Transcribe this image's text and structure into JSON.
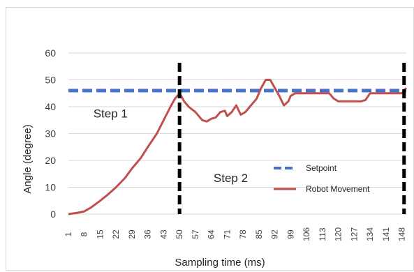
{
  "chart_data": {
    "type": "line",
    "title": "",
    "xlabel": "Sampling time (ms)",
    "ylabel": "Angle (degree)",
    "ylim": [
      0,
      60
    ],
    "yticks": [
      0,
      10,
      20,
      30,
      40,
      50,
      60
    ],
    "xlim": [
      1,
      150
    ],
    "xticks": [
      1,
      8,
      15,
      22,
      29,
      36,
      43,
      50,
      57,
      64,
      71,
      78,
      85,
      92,
      99,
      106,
      113,
      120,
      127,
      134,
      141,
      148
    ],
    "grid": "horizontal",
    "legend_position": "right-center",
    "series": [
      {
        "name": "Setpoint",
        "style": "dashed",
        "color": "#4472c4",
        "x": [
          1,
          150
        ],
        "y": [
          46,
          46
        ]
      },
      {
        "name": "Robot Movement",
        "style": "solid",
        "color": "#c0504d",
        "x": [
          1,
          5,
          8,
          11,
          15,
          18,
          22,
          26,
          29,
          33,
          36,
          40,
          43,
          46,
          48,
          50,
          52,
          54,
          57,
          60,
          62,
          64,
          66,
          68,
          70,
          71,
          73,
          75,
          77,
          79,
          81,
          84,
          86,
          88,
          90,
          92,
          94,
          96,
          98,
          99,
          101,
          104,
          106,
          110,
          113,
          116,
          118,
          120,
          124,
          127,
          130,
          132,
          134,
          137,
          141,
          145,
          148,
          150
        ],
        "y": [
          0,
          0.5,
          1,
          2.5,
          5,
          7,
          10,
          13.5,
          17,
          21,
          25,
          30,
          35,
          40,
          43,
          45,
          42,
          40,
          38,
          35,
          34.5,
          35.5,
          36,
          38,
          38.5,
          36.5,
          38,
          40.5,
          37,
          38,
          40,
          43,
          47,
          50,
          50,
          47,
          44,
          40.5,
          42,
          44,
          45,
          45,
          45,
          45,
          45,
          45,
          43,
          42,
          42,
          42,
          42,
          42.5,
          45,
          45,
          45,
          45,
          45,
          47
        ]
      }
    ],
    "annotations": [
      {
        "text": "Step 1",
        "x": 12,
        "y": 36
      },
      {
        "text": "Step 2",
        "x": 65,
        "y": 12
      }
    ],
    "markers": [
      {
        "type": "vertical-dashed",
        "x": 50,
        "color": "#000000"
      },
      {
        "type": "vertical-dashed",
        "x": 149,
        "color": "#000000"
      }
    ],
    "colors": {
      "setpoint": "#4472c4",
      "robot": "#c0504d",
      "grid": "#d9d9d9",
      "marker": "#000000",
      "tick_text": "#404040"
    }
  }
}
